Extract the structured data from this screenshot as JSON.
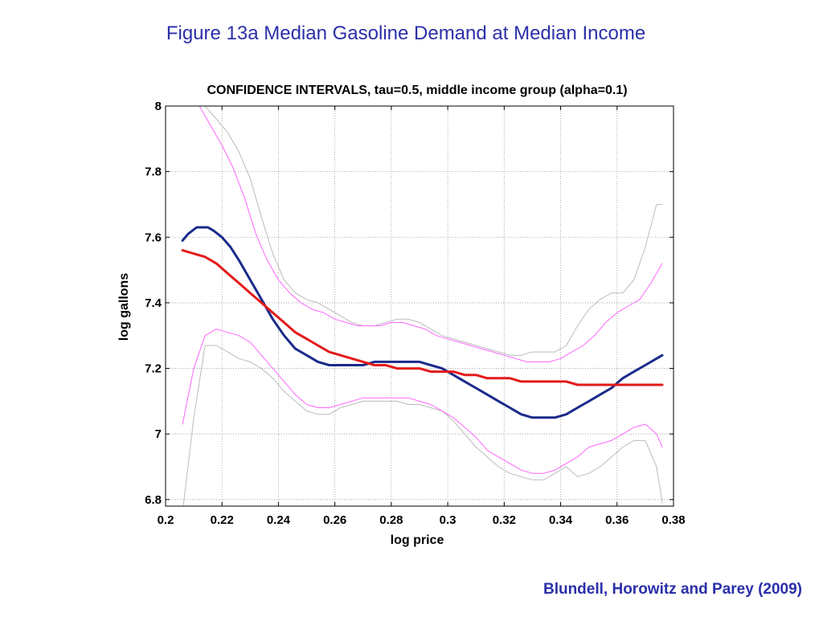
{
  "slide": {
    "title": "Figure 13a  Median Gasoline Demand at Median Income",
    "citation": "Blundell, Horowitz and Parey (2009)"
  },
  "chart_data": {
    "type": "line",
    "title": "CONFIDENCE INTERVALS, tau=0.5, middle income group (alpha=0.1)",
    "xlabel": "log price",
    "ylabel": "log gallons",
    "xlim": [
      0.2,
      0.38
    ],
    "ylim": [
      6.78,
      8
    ],
    "xticks": [
      0.2,
      0.22,
      0.24,
      0.26,
      0.28,
      0.3,
      0.32,
      0.34,
      0.36,
      0.38
    ],
    "xtick_labels": [
      "0.2",
      "0.22",
      "0.24",
      "0.26",
      "0.28",
      "0.3",
      "0.32",
      "0.34",
      "0.36",
      "0.38"
    ],
    "yticks": [
      6.8,
      7,
      7.2,
      7.4,
      7.6,
      7.8,
      8
    ],
    "ytick_labels": [
      "6.8",
      "7",
      "7.2",
      "7.4",
      "7.6",
      "7.8",
      "8"
    ],
    "grid": true,
    "series": [
      {
        "color": "#bbbbbb",
        "width": 1,
        "x": [
          0.206,
          0.21,
          0.214,
          0.218,
          0.222,
          0.226,
          0.23,
          0.234,
          0.238,
          0.242,
          0.246,
          0.25,
          0.254,
          0.258,
          0.262,
          0.266,
          0.27,
          0.274,
          0.278,
          0.282,
          0.286,
          0.29,
          0.294,
          0.298,
          0.302,
          0.306,
          0.31,
          0.314,
          0.318,
          0.322,
          0.326,
          0.33,
          0.334,
          0.338,
          0.342,
          0.346,
          0.35,
          0.354,
          0.358,
          0.362,
          0.366,
          0.37,
          0.374,
          0.376
        ],
        "y": [
          6.76,
          7.05,
          7.27,
          7.27,
          7.25,
          7.23,
          7.22,
          7.2,
          7.17,
          7.13,
          7.1,
          7.07,
          7.06,
          7.06,
          7.08,
          7.09,
          7.1,
          7.1,
          7.1,
          7.1,
          7.09,
          7.09,
          7.08,
          7.07,
          7.04,
          7.0,
          6.96,
          6.93,
          6.9,
          6.88,
          6.87,
          6.86,
          6.86,
          6.88,
          6.9,
          6.87,
          6.88,
          6.9,
          6.93,
          6.96,
          6.98,
          6.98,
          6.9,
          6.79
        ]
      },
      {
        "color": "#bbbbbb",
        "width": 1,
        "x": [
          0.214,
          0.218,
          0.222,
          0.226,
          0.23,
          0.234,
          0.238,
          0.242,
          0.246,
          0.25,
          0.254,
          0.258,
          0.262,
          0.266,
          0.27,
          0.274,
          0.278,
          0.282,
          0.286,
          0.29,
          0.294,
          0.298,
          0.302,
          0.306,
          0.31,
          0.314,
          0.318,
          0.322,
          0.326,
          0.33,
          0.334,
          0.338,
          0.342,
          0.346,
          0.35,
          0.354,
          0.358,
          0.362,
          0.366,
          0.37,
          0.374,
          0.376
        ],
        "y": [
          8.0,
          7.96,
          7.92,
          7.86,
          7.78,
          7.66,
          7.55,
          7.47,
          7.43,
          7.41,
          7.4,
          7.38,
          7.36,
          7.34,
          7.33,
          7.33,
          7.34,
          7.35,
          7.35,
          7.34,
          7.32,
          7.3,
          7.29,
          7.28,
          7.27,
          7.26,
          7.25,
          7.24,
          7.24,
          7.25,
          7.25,
          7.25,
          7.27,
          7.33,
          7.38,
          7.41,
          7.43,
          7.43,
          7.47,
          7.57,
          7.7,
          7.7
        ]
      },
      {
        "color": "#ff66ff",
        "width": 1,
        "x": [
          0.206,
          0.21,
          0.214,
          0.218,
          0.222,
          0.226,
          0.23,
          0.234,
          0.238,
          0.242,
          0.246,
          0.25,
          0.254,
          0.258,
          0.262,
          0.266,
          0.27,
          0.274,
          0.278,
          0.282,
          0.286,
          0.29,
          0.294,
          0.298,
          0.302,
          0.306,
          0.31,
          0.314,
          0.318,
          0.322,
          0.326,
          0.33,
          0.334,
          0.338,
          0.342,
          0.346,
          0.35,
          0.354,
          0.358,
          0.362,
          0.366,
          0.37,
          0.374,
          0.376
        ],
        "y": [
          7.03,
          7.2,
          7.3,
          7.32,
          7.31,
          7.3,
          7.28,
          7.24,
          7.2,
          7.16,
          7.12,
          7.09,
          7.08,
          7.08,
          7.09,
          7.1,
          7.11,
          7.11,
          7.11,
          7.11,
          7.11,
          7.1,
          7.09,
          7.07,
          7.05,
          7.02,
          6.99,
          6.95,
          6.93,
          6.91,
          6.89,
          6.88,
          6.88,
          6.89,
          6.91,
          6.93,
          6.96,
          6.97,
          6.98,
          7.0,
          7.02,
          7.03,
          7.0,
          6.96
        ]
      },
      {
        "color": "#ff66ff",
        "width": 1,
        "x": [
          0.212,
          0.216,
          0.22,
          0.224,
          0.228,
          0.232,
          0.236,
          0.24,
          0.244,
          0.248,
          0.252,
          0.256,
          0.26,
          0.264,
          0.268,
          0.272,
          0.276,
          0.28,
          0.284,
          0.288,
          0.292,
          0.296,
          0.3,
          0.304,
          0.308,
          0.312,
          0.316,
          0.32,
          0.324,
          0.328,
          0.332,
          0.336,
          0.34,
          0.344,
          0.348,
          0.352,
          0.356,
          0.36,
          0.364,
          0.368,
          0.372,
          0.376
        ],
        "y": [
          8.0,
          7.94,
          7.88,
          7.81,
          7.72,
          7.61,
          7.53,
          7.47,
          7.43,
          7.4,
          7.38,
          7.37,
          7.35,
          7.34,
          7.33,
          7.33,
          7.33,
          7.34,
          7.34,
          7.33,
          7.32,
          7.3,
          7.29,
          7.28,
          7.27,
          7.26,
          7.25,
          7.24,
          7.23,
          7.22,
          7.22,
          7.22,
          7.23,
          7.25,
          7.27,
          7.3,
          7.34,
          7.37,
          7.39,
          7.41,
          7.46,
          7.52
        ]
      },
      {
        "color": "#1a2a8a",
        "width": 3,
        "x": [
          0.206,
          0.208,
          0.211,
          0.213,
          0.215,
          0.217,
          0.22,
          0.223,
          0.226,
          0.23,
          0.234,
          0.238,
          0.242,
          0.246,
          0.25,
          0.254,
          0.258,
          0.262,
          0.266,
          0.27,
          0.274,
          0.278,
          0.282,
          0.286,
          0.29,
          0.294,
          0.298,
          0.302,
          0.306,
          0.31,
          0.314,
          0.318,
          0.322,
          0.326,
          0.33,
          0.334,
          0.338,
          0.342,
          0.346,
          0.35,
          0.354,
          0.358,
          0.362,
          0.366,
          0.37,
          0.374,
          0.376
        ],
        "y": [
          7.59,
          7.61,
          7.63,
          7.63,
          7.63,
          7.62,
          7.6,
          7.57,
          7.53,
          7.47,
          7.41,
          7.35,
          7.3,
          7.26,
          7.24,
          7.22,
          7.21,
          7.21,
          7.21,
          7.21,
          7.22,
          7.22,
          7.22,
          7.22,
          7.22,
          7.21,
          7.2,
          7.18,
          7.16,
          7.14,
          7.12,
          7.1,
          7.08,
          7.06,
          7.05,
          7.05,
          7.05,
          7.06,
          7.08,
          7.1,
          7.12,
          7.14,
          7.17,
          7.19,
          7.21,
          7.23,
          7.24
        ]
      },
      {
        "color": "#e31a1a",
        "width": 3,
        "x": [
          0.206,
          0.21,
          0.214,
          0.218,
          0.222,
          0.226,
          0.23,
          0.234,
          0.238,
          0.242,
          0.246,
          0.25,
          0.254,
          0.258,
          0.262,
          0.266,
          0.27,
          0.274,
          0.278,
          0.282,
          0.286,
          0.29,
          0.294,
          0.298,
          0.302,
          0.306,
          0.31,
          0.314,
          0.318,
          0.322,
          0.326,
          0.33,
          0.334,
          0.338,
          0.342,
          0.346,
          0.35,
          0.354,
          0.358,
          0.362,
          0.366,
          0.37,
          0.374,
          0.376
        ],
        "y": [
          7.56,
          7.55,
          7.54,
          7.52,
          7.49,
          7.46,
          7.43,
          7.4,
          7.37,
          7.34,
          7.31,
          7.29,
          7.27,
          7.25,
          7.24,
          7.23,
          7.22,
          7.21,
          7.21,
          7.2,
          7.2,
          7.2,
          7.19,
          7.19,
          7.19,
          7.18,
          7.18,
          7.17,
          7.17,
          7.17,
          7.16,
          7.16,
          7.16,
          7.16,
          7.16,
          7.15,
          7.15,
          7.15,
          7.15,
          7.15,
          7.15,
          7.15,
          7.15,
          7.15
        ]
      }
    ]
  }
}
